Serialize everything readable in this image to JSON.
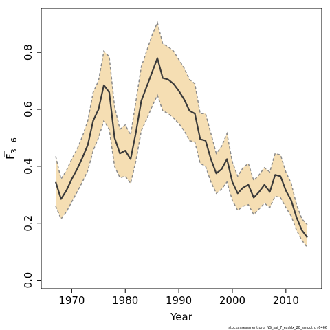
{
  "chart_data": {
    "type": "line",
    "title": "",
    "xlabel": "Year",
    "ylabel_main": "F",
    "ylabel_sub": "3−6",
    "xlim": [
      1964.3,
      2016.7
    ],
    "ylim": [
      -0.03,
      0.955
    ],
    "x_ticks": [
      1970,
      1980,
      1990,
      2000,
      2010
    ],
    "x_tick_labels": [
      "1970",
      "1980",
      "1990",
      "2000",
      "2010"
    ],
    "y_ticks": [
      0.0,
      0.2,
      0.4,
      0.6,
      0.8
    ],
    "y_tick_labels": [
      "0.0",
      "0.2",
      "0.4",
      "0.6",
      "0.8"
    ],
    "grid": false,
    "legend": "none",
    "credit": "stockassessment.org, NS_sai_7_exddx_20_smooth, r6466",
    "colors": {
      "band": "#f5deb3",
      "band_edge": "#8a8a8a",
      "line": "#3a3a3a"
    },
    "x": [
      1967,
      1968,
      1969,
      1970,
      1971,
      1972,
      1973,
      1974,
      1975,
      1976,
      1977,
      1978,
      1979,
      1980,
      1981,
      1982,
      1983,
      1984,
      1985,
      1986,
      1987,
      1988,
      1989,
      1990,
      1991,
      1992,
      1993,
      1994,
      1995,
      1996,
      1997,
      1998,
      1999,
      2000,
      2001,
      2002,
      2003,
      2004,
      2005,
      2006,
      2007,
      2008,
      2009,
      2010,
      2011,
      2012,
      2013,
      2014
    ],
    "series": [
      {
        "role": "estimate",
        "values": [
          0.345,
          0.285,
          0.315,
          0.355,
          0.39,
          0.43,
          0.475,
          0.56,
          0.6,
          0.685,
          0.66,
          0.5,
          0.445,
          0.455,
          0.425,
          0.52,
          0.63,
          0.68,
          0.73,
          0.78,
          0.71,
          0.705,
          0.69,
          0.665,
          0.635,
          0.595,
          0.585,
          0.495,
          0.49,
          0.425,
          0.375,
          0.39,
          0.425,
          0.345,
          0.305,
          0.325,
          0.335,
          0.29,
          0.31,
          0.335,
          0.31,
          0.37,
          0.365,
          0.315,
          0.28,
          0.22,
          0.175,
          0.15
        ]
      },
      {
        "role": "upper",
        "values": [
          0.435,
          0.355,
          0.385,
          0.425,
          0.46,
          0.505,
          0.56,
          0.66,
          0.7,
          0.805,
          0.785,
          0.61,
          0.53,
          0.545,
          0.51,
          0.63,
          0.75,
          0.805,
          0.86,
          0.905,
          0.83,
          0.82,
          0.805,
          0.775,
          0.745,
          0.705,
          0.69,
          0.585,
          0.585,
          0.515,
          0.445,
          0.47,
          0.515,
          0.415,
          0.365,
          0.395,
          0.41,
          0.35,
          0.37,
          0.395,
          0.38,
          0.445,
          0.44,
          0.38,
          0.34,
          0.265,
          0.215,
          0.195
        ]
      },
      {
        "role": "lower",
        "values": [
          0.26,
          0.215,
          0.24,
          0.275,
          0.31,
          0.345,
          0.385,
          0.455,
          0.5,
          0.56,
          0.53,
          0.4,
          0.36,
          0.365,
          0.34,
          0.42,
          0.525,
          0.565,
          0.61,
          0.65,
          0.595,
          0.585,
          0.57,
          0.55,
          0.525,
          0.49,
          0.485,
          0.41,
          0.4,
          0.345,
          0.305,
          0.32,
          0.345,
          0.28,
          0.245,
          0.26,
          0.265,
          0.23,
          0.25,
          0.27,
          0.255,
          0.295,
          0.29,
          0.255,
          0.225,
          0.175,
          0.14,
          0.115
        ]
      }
    ]
  }
}
